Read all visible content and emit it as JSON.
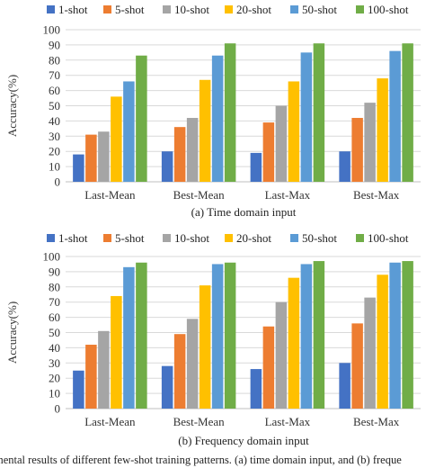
{
  "chart_data": [
    {
      "type": "bar",
      "caption": "(a) Time domain input",
      "ylabel": "Accuracy(%)",
      "ylim": [
        0,
        100
      ],
      "yticks": [
        0,
        10,
        20,
        30,
        40,
        50,
        60,
        70,
        80,
        90,
        100
      ],
      "grid": true,
      "legend": "top",
      "categories": [
        "Last-Mean",
        "Best-Mean",
        "Last-Max",
        "Best-Max"
      ],
      "series": [
        {
          "name": "1-shot",
          "color": "#4472C4",
          "values": [
            18,
            20,
            19,
            20
          ]
        },
        {
          "name": "5-shot",
          "color": "#ED7D31",
          "values": [
            31,
            36,
            39,
            42
          ]
        },
        {
          "name": "10-shot",
          "color": "#A5A5A5",
          "values": [
            33,
            42,
            50,
            52
          ]
        },
        {
          "name": "20-shot",
          "color": "#FFC000",
          "values": [
            56,
            67,
            66,
            68
          ]
        },
        {
          "name": "50-shot",
          "color": "#5B9BD5",
          "values": [
            66,
            83,
            85,
            86
          ]
        },
        {
          "name": "100-shot",
          "color": "#70AD47",
          "values": [
            83,
            91,
            91,
            91
          ]
        }
      ]
    },
    {
      "type": "bar",
      "caption": "(b) Frequency domain input",
      "ylabel": "Accuracy(%)",
      "ylim": [
        0,
        100
      ],
      "yticks": [
        0,
        10,
        20,
        30,
        40,
        50,
        60,
        70,
        80,
        90,
        100
      ],
      "grid": true,
      "legend": "top",
      "categories": [
        "Last-Mean",
        "Best-Mean",
        "Last-Max",
        "Best-Max"
      ],
      "series": [
        {
          "name": "1-shot",
          "color": "#4472C4",
          "values": [
            25,
            28,
            26,
            30
          ]
        },
        {
          "name": "5-shot",
          "color": "#ED7D31",
          "values": [
            42,
            49,
            54,
            56
          ]
        },
        {
          "name": "10-shot",
          "color": "#A5A5A5",
          "values": [
            51,
            59,
            70,
            73
          ]
        },
        {
          "name": "20-shot",
          "color": "#FFC000",
          "values": [
            74,
            81,
            86,
            88
          ]
        },
        {
          "name": "50-shot",
          "color": "#5B9BD5",
          "values": [
            93,
            95,
            95,
            96
          ]
        },
        {
          "name": "100-shot",
          "color": "#70AD47",
          "values": [
            96,
            96,
            97,
            97
          ]
        }
      ]
    }
  ],
  "figure_caption": "mental results of different few-shot training patterns. (a) time domain input, and (b) freque"
}
